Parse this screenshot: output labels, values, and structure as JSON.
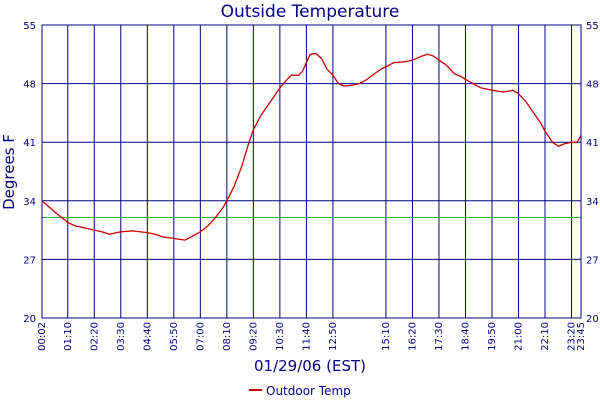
{
  "chart_data": {
    "type": "line",
    "title": "Outside Temperature",
    "xlabel": "01/29/06 (EST)",
    "ylabel": "Degrees F",
    "ylim": [
      20,
      55
    ],
    "yticks": [
      20,
      27,
      34,
      41,
      48,
      55
    ],
    "xlim": [
      "00:02",
      "23:45"
    ],
    "xticks": [
      "00:02",
      "01:10",
      "02:20",
      "03:30",
      "04:40",
      "05:50",
      "07:00",
      "08:10",
      "09:20",
      "10:30",
      "11:40",
      "12:50",
      "15:10",
      "16:20",
      "17:30",
      "18:40",
      "19:50",
      "21:00",
      "22:10",
      "23:20",
      "23:45"
    ],
    "grid": true,
    "reference_line": {
      "value": 32,
      "color": "#33aa33"
    },
    "legend_position": "bottom-center",
    "series": [
      {
        "name": "Outdoor Temp",
        "color": "#cc0000",
        "points": [
          [
            "00:02",
            34.0
          ],
          [
            "00:20",
            33.3
          ],
          [
            "00:40",
            32.5
          ],
          [
            "01:00",
            31.8
          ],
          [
            "01:10",
            31.4
          ],
          [
            "01:30",
            31.0
          ],
          [
            "02:00",
            30.7
          ],
          [
            "02:20",
            30.5
          ],
          [
            "02:40",
            30.3
          ],
          [
            "03:00",
            30.0
          ],
          [
            "03:30",
            30.3
          ],
          [
            "04:00",
            30.4
          ],
          [
            "04:40",
            30.2
          ],
          [
            "05:00",
            30.0
          ],
          [
            "05:20",
            29.7
          ],
          [
            "05:50",
            29.5
          ],
          [
            "06:20",
            29.3
          ],
          [
            "06:40",
            29.8
          ],
          [
            "07:00",
            30.3
          ],
          [
            "07:20",
            31.0
          ],
          [
            "07:40",
            32.0
          ],
          [
            "08:00",
            33.2
          ],
          [
            "08:10",
            34.0
          ],
          [
            "08:30",
            35.8
          ],
          [
            "08:50",
            38.2
          ],
          [
            "09:05",
            40.5
          ],
          [
            "09:20",
            42.5
          ],
          [
            "09:40",
            44.2
          ],
          [
            "10:00",
            45.5
          ],
          [
            "10:15",
            46.5
          ],
          [
            "10:30",
            47.5
          ],
          [
            "10:45",
            48.3
          ],
          [
            "11:00",
            49.0
          ],
          [
            "11:20",
            49.0
          ],
          [
            "11:30",
            49.5
          ],
          [
            "11:40",
            50.5
          ],
          [
            "11:50",
            51.5
          ],
          [
            "12:05",
            51.6
          ],
          [
            "12:20",
            51.0
          ],
          [
            "12:35",
            49.7
          ],
          [
            "12:50",
            49.0
          ],
          [
            "13:05",
            48.0
          ],
          [
            "13:20",
            47.7
          ],
          [
            "13:40",
            47.8
          ],
          [
            "14:00",
            48.0
          ],
          [
            "14:20",
            48.5
          ],
          [
            "14:40",
            49.2
          ],
          [
            "15:00",
            49.8
          ],
          [
            "15:10",
            50.0
          ],
          [
            "15:30",
            50.5
          ],
          [
            "16:00",
            50.6
          ],
          [
            "16:20",
            50.8
          ],
          [
            "16:40",
            51.2
          ],
          [
            "17:00",
            51.5
          ],
          [
            "17:15",
            51.3
          ],
          [
            "17:30",
            50.8
          ],
          [
            "17:50",
            50.2
          ],
          [
            "18:10",
            49.2
          ],
          [
            "18:30",
            48.8
          ],
          [
            "18:40",
            48.5
          ],
          [
            "19:00",
            48.0
          ],
          [
            "19:20",
            47.5
          ],
          [
            "19:50",
            47.2
          ],
          [
            "20:20",
            47.0
          ],
          [
            "20:45",
            47.2
          ],
          [
            "21:00",
            46.8
          ],
          [
            "21:20",
            45.8
          ],
          [
            "21:40",
            44.5
          ],
          [
            "22:00",
            43.2
          ],
          [
            "22:10",
            42.3
          ],
          [
            "22:30",
            41.0
          ],
          [
            "22:45",
            40.5
          ],
          [
            "23:00",
            40.8
          ],
          [
            "23:20",
            41.0
          ],
          [
            "23:35",
            41.0
          ],
          [
            "23:45",
            41.8
          ]
        ]
      }
    ]
  }
}
